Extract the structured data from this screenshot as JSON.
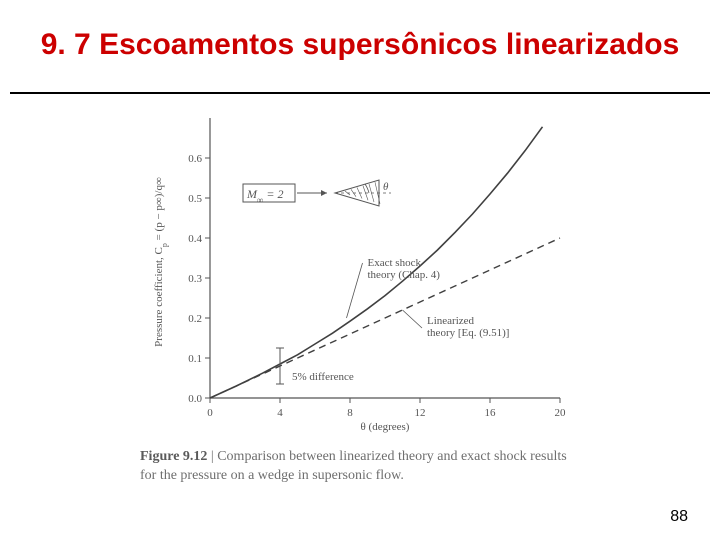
{
  "title": {
    "text": "9. 7 Escoamentos supersônicos linearizados",
    "color": "#cc0000",
    "fontsize": 30,
    "weight": "bold"
  },
  "page_number": 88,
  "chart": {
    "type": "line",
    "background_color": "#ffffff",
    "axis_color": "#555555",
    "text_color": "#555555",
    "tick_fontsize": 11,
    "label_fontsize": 11,
    "xlabel": "θ (degrees)",
    "ylabel": "Pressure coefficient, Cₚ = (p − p∞)/q∞",
    "xlim": [
      0,
      20
    ],
    "ylim": [
      0,
      0.7
    ],
    "xticks": [
      0,
      4,
      8,
      12,
      16,
      20
    ],
    "yticks": [
      0,
      0.1,
      0.2,
      0.3,
      0.4,
      0.5,
      0.6
    ],
    "series": [
      {
        "name": "Exact shock theory (Chap. 4)",
        "style": "solid",
        "linewidth": 1.6,
        "color": "#404040",
        "points": [
          [
            0,
            0
          ],
          [
            1.5,
            0.03
          ],
          [
            3,
            0.062
          ],
          [
            4,
            0.085
          ],
          [
            5,
            0.108
          ],
          [
            6,
            0.135
          ],
          [
            7,
            0.162
          ],
          [
            8,
            0.192
          ],
          [
            9,
            0.223
          ],
          [
            10,
            0.256
          ],
          [
            11,
            0.292
          ],
          [
            12,
            0.33
          ],
          [
            13,
            0.37
          ],
          [
            14,
            0.414
          ],
          [
            15,
            0.46
          ],
          [
            16,
            0.51
          ],
          [
            17,
            0.562
          ],
          [
            18,
            0.618
          ],
          [
            19,
            0.678
          ]
        ]
      },
      {
        "name": "Linearized theory [Eq. (9.51)]",
        "style": "dashed",
        "linewidth": 1.4,
        "color": "#404040",
        "points": [
          [
            0,
            0
          ],
          [
            2,
            0.04
          ],
          [
            4,
            0.08
          ],
          [
            6,
            0.12
          ],
          [
            8,
            0.16
          ],
          [
            10,
            0.2
          ],
          [
            12,
            0.24
          ],
          [
            14,
            0.28
          ],
          [
            16,
            0.32
          ],
          [
            18,
            0.36
          ],
          [
            20,
            0.4
          ]
        ]
      }
    ],
    "annotations": {
      "mach_label": "M∞ = 2",
      "theta_label": "θ",
      "five_pct_x": 4,
      "five_pct_label": "5% difference",
      "exact_callout": "Exact shock\ntheory (Chap. 4)",
      "linearized_callout": "Linearized\ntheory [Eq. (9.51)]"
    }
  },
  "caption": {
    "label": "Figure 9.12",
    "text": "Comparison between linearized theory and exact shock results for the pressure on a wedge in supersonic flow."
  }
}
